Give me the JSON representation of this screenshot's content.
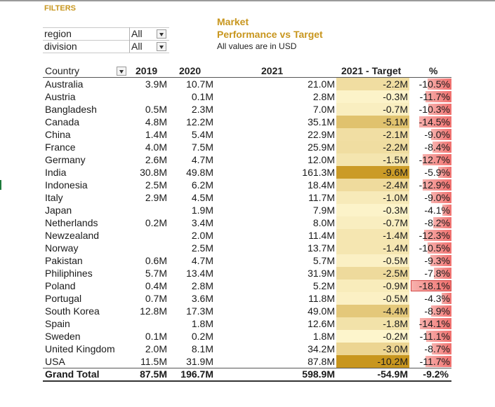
{
  "filters": {
    "title": "FILTERS",
    "slicers": [
      {
        "label": "region",
        "value": "All"
      },
      {
        "label": "division",
        "value": "All"
      }
    ]
  },
  "report": {
    "title_line1": "Market",
    "title_line2": "Performance vs Target",
    "subtitle": "All values are in USD"
  },
  "table": {
    "headers": {
      "country": "Country",
      "y2019": "2019",
      "y2020": "2020",
      "y2021": "2021",
      "target": "2021 - Target",
      "pct": "%"
    },
    "rows": [
      {
        "country": "Australia",
        "y2019": "3.9M",
        "y2020": "10.7M",
        "y2021": "21.0M",
        "target": "-2.2M",
        "target_value": -2.2,
        "pct": "-10.5%",
        "pct_value": -10.5
      },
      {
        "country": "Austria",
        "y2019": "",
        "y2020": "0.1M",
        "y2021": "2.8M",
        "target": "-0.3M",
        "target_value": -0.3,
        "pct": "-11.7%",
        "pct_value": -11.7
      },
      {
        "country": "Bangladesh",
        "y2019": "0.5M",
        "y2020": "2.3M",
        "y2021": "7.0M",
        "target": "-0.7M",
        "target_value": -0.7,
        "pct": "-10.3%",
        "pct_value": -10.3
      },
      {
        "country": "Canada",
        "y2019": "4.8M",
        "y2020": "12.2M",
        "y2021": "35.1M",
        "target": "-5.1M",
        "target_value": -5.1,
        "pct": "-14.5%",
        "pct_value": -14.5
      },
      {
        "country": "China",
        "y2019": "1.4M",
        "y2020": "5.4M",
        "y2021": "22.9M",
        "target": "-2.1M",
        "target_value": -2.1,
        "pct": "-9.0%",
        "pct_value": -9.0
      },
      {
        "country": "France",
        "y2019": "4.0M",
        "y2020": "7.5M",
        "y2021": "25.9M",
        "target": "-2.2M",
        "target_value": -2.2,
        "pct": "-8.4%",
        "pct_value": -8.4
      },
      {
        "country": "Germany",
        "y2019": "2.6M",
        "y2020": "4.7M",
        "y2021": "12.0M",
        "target": "-1.5M",
        "target_value": -1.5,
        "pct": "-12.7%",
        "pct_value": -12.7
      },
      {
        "country": "India",
        "y2019": "30.8M",
        "y2020": "49.8M",
        "y2021": "161.3M",
        "target": "-9.6M",
        "target_value": -9.6,
        "pct": "-5.9%",
        "pct_value": -5.9
      },
      {
        "country": "Indonesia",
        "y2019": "2.5M",
        "y2020": "6.2M",
        "y2021": "18.4M",
        "target": "-2.4M",
        "target_value": -2.4,
        "pct": "-12.9%",
        "pct_value": -12.9
      },
      {
        "country": "Italy",
        "y2019": "2.9M",
        "y2020": "4.5M",
        "y2021": "11.7M",
        "target": "-1.0M",
        "target_value": -1.0,
        "pct": "-9.0%",
        "pct_value": -9.0
      },
      {
        "country": "Japan",
        "y2019": "",
        "y2020": "1.9M",
        "y2021": "7.9M",
        "target": "-0.3M",
        "target_value": -0.3,
        "pct": "-4.1%",
        "pct_value": -4.1
      },
      {
        "country": "Netherlands",
        "y2019": "0.2M",
        "y2020": "3.4M",
        "y2021": "8.0M",
        "target": "-0.7M",
        "target_value": -0.7,
        "pct": "-8.2%",
        "pct_value": -8.2
      },
      {
        "country": "Newzealand",
        "y2019": "",
        "y2020": "2.0M",
        "y2021": "11.4M",
        "target": "-1.4M",
        "target_value": -1.4,
        "pct": "-12.3%",
        "pct_value": -12.3
      },
      {
        "country": "Norway",
        "y2019": "",
        "y2020": "2.5M",
        "y2021": "13.7M",
        "target": "-1.4M",
        "target_value": -1.4,
        "pct": "-10.5%",
        "pct_value": -10.5
      },
      {
        "country": "Pakistan",
        "y2019": "0.6M",
        "y2020": "4.7M",
        "y2021": "5.7M",
        "target": "-0.5M",
        "target_value": -0.5,
        "pct": "-9.3%",
        "pct_value": -9.3
      },
      {
        "country": "Philiphines",
        "y2019": "5.7M",
        "y2020": "13.4M",
        "y2021": "31.9M",
        "target": "-2.5M",
        "target_value": -2.5,
        "pct": "-7.8%",
        "pct_value": -7.8
      },
      {
        "country": "Poland",
        "y2019": "0.4M",
        "y2020": "2.8M",
        "y2021": "5.2M",
        "target": "-0.9M",
        "target_value": -0.9,
        "pct": "-18.1%",
        "pct_value": -18.1
      },
      {
        "country": "Portugal",
        "y2019": "0.7M",
        "y2020": "3.6M",
        "y2021": "11.8M",
        "target": "-0.5M",
        "target_value": -0.5,
        "pct": "-4.3%",
        "pct_value": -4.3
      },
      {
        "country": "South Korea",
        "y2019": "12.8M",
        "y2020": "17.3M",
        "y2021": "49.0M",
        "target": "-4.4M",
        "target_value": -4.4,
        "pct": "-8.9%",
        "pct_value": -8.9
      },
      {
        "country": "Spain",
        "y2019": "",
        "y2020": "1.8M",
        "y2021": "12.6M",
        "target": "-1.8M",
        "target_value": -1.8,
        "pct": "-14.1%",
        "pct_value": -14.1
      },
      {
        "country": "Sweden",
        "y2019": "0.1M",
        "y2020": "0.2M",
        "y2021": "1.8M",
        "target": "-0.2M",
        "target_value": -0.2,
        "pct": "-11.1%",
        "pct_value": -11.1
      },
      {
        "country": "United Kingdom",
        "y2019": "2.0M",
        "y2020": "8.1M",
        "y2021": "34.2M",
        "target": "-3.0M",
        "target_value": -3.0,
        "pct": "-8.7%",
        "pct_value": -8.7
      },
      {
        "country": "USA",
        "y2019": "11.5M",
        "y2020": "31.9M",
        "y2021": "87.8M",
        "target": "-10.2M",
        "target_value": -10.2,
        "pct": "-11.7%",
        "pct_value": -11.7
      }
    ],
    "total": {
      "country": "Grand Total",
      "y2019": "87.5M",
      "y2020": "196.7M",
      "y2021": "598.9M",
      "target": "-54.9M",
      "pct": "-9.2%"
    }
  },
  "colors": {
    "accent": "#c8961e",
    "heat_low": "#fff8d2",
    "heat_high": "#c8961e",
    "pct_bar": "#f0706e",
    "pct_bar_light": "#f7b1ad"
  }
}
